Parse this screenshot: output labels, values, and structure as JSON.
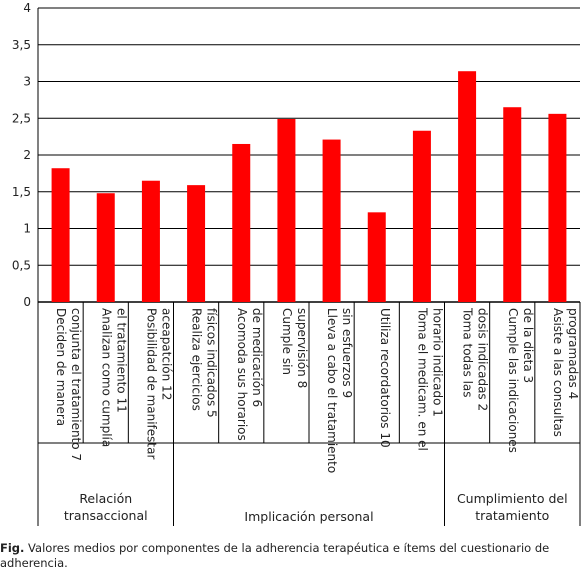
{
  "chart_data": {
    "type": "bar",
    "ylim": [
      0,
      4
    ],
    "yticks": [
      "0",
      "0,5",
      "1",
      "1,5",
      "2",
      "2,5",
      "3",
      "3,5",
      "4"
    ],
    "grid": true,
    "bar_color": "#ff0000",
    "categories": [
      [
        "Deciden de manera",
        "conjunta el tratamiento 7"
      ],
      [
        "Analizan como cumplía",
        "el tratamiento 11"
      ],
      [
        "Posibilidad de manifestar",
        "aceapatción 12"
      ],
      [
        "Realiza ejercicios",
        "físicos indicados 5"
      ],
      [
        "Acomoda sus horarios",
        "de medicación 6"
      ],
      [
        "Cumple sin",
        "supervisión 8"
      ],
      [
        "Lleva a cabo el tratamiento",
        "sin esfuerzos 9"
      ],
      [
        "Utiliza recordatorios 10"
      ],
      [
        "Toma el medicam. en el",
        "horario indicado 1"
      ],
      [
        "Toma todas las",
        "dosis indicadas 2"
      ],
      [
        "Cumple las indicaciones",
        "de la dieta 3"
      ],
      [
        "Asiste a las consultas",
        "programadas 4"
      ]
    ],
    "values": [
      1.82,
      1.48,
      1.65,
      1.59,
      2.15,
      2.49,
      2.21,
      1.22,
      2.33,
      3.14,
      2.65,
      2.56
    ],
    "groups": [
      {
        "label": [
          "Relación",
          "transaccional"
        ],
        "start": 0,
        "end": 2
      },
      {
        "label": [
          "Implicación personal"
        ],
        "start": 3,
        "end": 8
      },
      {
        "label": [
          "Cumplimiento del",
          "tratamiento"
        ],
        "start": 9,
        "end": 11
      }
    ]
  },
  "caption": {
    "prefix": "Fig.",
    "text": " Valores medios por componentes de la adherencia terapéutica e ítems del cuestionario de adherencia."
  }
}
